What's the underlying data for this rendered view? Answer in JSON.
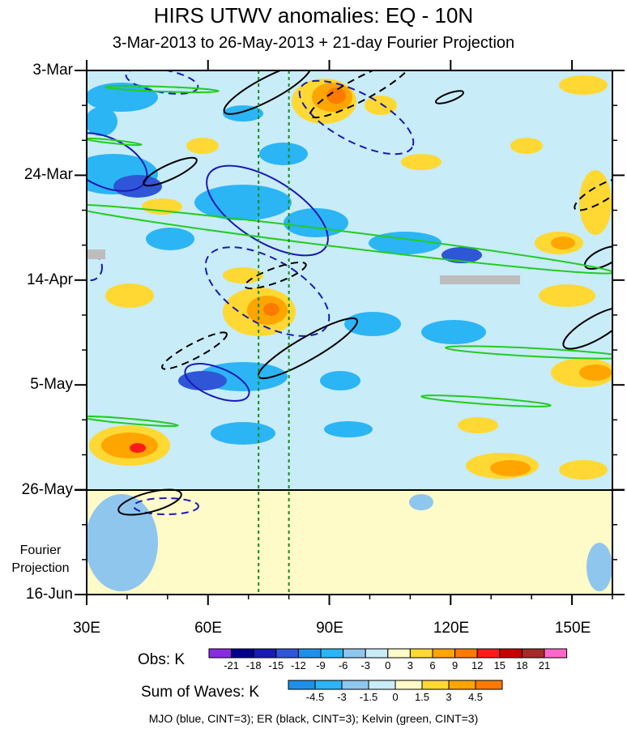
{
  "chart_data": {
    "type": "heatmap",
    "title": "HIRS UTWV anomalies: EQ - 10N",
    "subtitle": "3-Mar-2013 to 26-May-2013 + 21-day Fourier Projection",
    "x_axis": {
      "range": [
        30,
        160
      ],
      "ticks": [
        "30E",
        "60E",
        "90E",
        "120E",
        "150E"
      ],
      "tick_values": [
        30,
        60,
        90,
        120,
        150
      ]
    },
    "y_axis": {
      "ticks": [
        "3-Mar",
        "24-Mar",
        "14-Apr",
        "5-May",
        "26-May",
        "16-Jun"
      ],
      "direction": "time increases downward"
    },
    "projection_label": "Fourier Projection",
    "reference_lines_lon": [
      72.5,
      80
    ],
    "obs_legend": {
      "label": "Obs: K",
      "levels": [
        "-21",
        "-18",
        "-15",
        "-12",
        "-9",
        "-6",
        "-3",
        "0",
        "3",
        "6",
        "9",
        "12",
        "15",
        "18",
        "21"
      ],
      "colors": [
        "#8a2be2",
        "#00008b",
        "#1a1ab5",
        "#2f56d6",
        "#1f90e8",
        "#2bb5f5",
        "#8fc6ee",
        "#c8ecf8",
        "#fffbc8",
        "#ffd833",
        "#ffa500",
        "#ff7a00",
        "#ff1a1a",
        "#c80000",
        "#a52a2a",
        "#ff66cc"
      ]
    },
    "waves_legend": {
      "label": "Sum of Waves: K",
      "levels": [
        "-4.5",
        "-3",
        "-1.5",
        "0",
        "1.5",
        "3",
        "4.5"
      ],
      "colors": [
        "#1f90e8",
        "#2bb5f5",
        "#8fc6ee",
        "#c8ecf8",
        "#fffbc8",
        "#ffd833",
        "#ffa500",
        "#ff7a00"
      ]
    },
    "contours": [
      {
        "name": "MJO",
        "color": "blue",
        "cint": 3
      },
      {
        "name": "ER",
        "color": "black",
        "cint": 3
      },
      {
        "name": "Kelvin",
        "color": "green",
        "cint": 3
      }
    ],
    "footer": "MJO (blue, CINT=3); ER (black, CINT=3); Kelvin (green, CINT=3)"
  }
}
